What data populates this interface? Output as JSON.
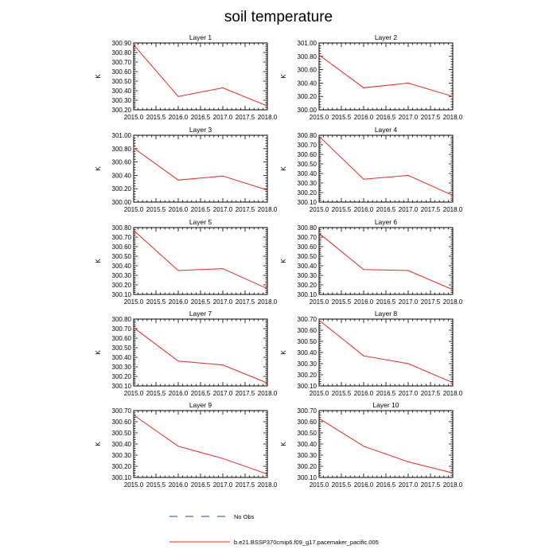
{
  "title": "soil temperature",
  "legend": [
    {
      "label": "No Obs",
      "color": "#2b3b8f",
      "style": "dashed"
    },
    {
      "label": "b.e21.BSSP370cmip6.f09_g17.pacemaker_pacific.005",
      "color": "#e8281e",
      "style": "solid"
    }
  ],
  "series_color": "#e8281e",
  "chart_data": [
    {
      "type": "line",
      "title": "Layer 1",
      "ylabel": "K",
      "x": [
        2015.0,
        2016.0,
        2017.0,
        2018.0
      ],
      "values": [
        300.88,
        300.34,
        300.43,
        300.24
      ],
      "xlim": [
        2015.0,
        2018.0
      ],
      "ylim": [
        300.2,
        300.9
      ],
      "xticks": [
        "2015.0",
        "2015.5",
        "2016.0",
        "2016.5",
        "2017.0",
        "2017.5",
        "2018.0"
      ],
      "yticks": [
        "300.20",
        "300.30",
        "300.40",
        "300.50",
        "300.60",
        "300.70",
        "300.80",
        "300.90"
      ]
    },
    {
      "type": "line",
      "title": "Layer 2",
      "ylabel": "K",
      "x": [
        2015.0,
        2016.0,
        2017.0,
        2018.0
      ],
      "values": [
        300.82,
        300.33,
        300.4,
        300.2
      ],
      "xlim": [
        2015.0,
        2018.0
      ],
      "ylim": [
        300.0,
        301.0
      ],
      "xticks": [
        "2015.0",
        "2015.5",
        "2016.0",
        "2016.5",
        "2017.0",
        "2017.5",
        "2018.0"
      ],
      "yticks": [
        "300.00",
        "300.20",
        "300.40",
        "300.60",
        "300.80",
        "301.00"
      ]
    },
    {
      "type": "line",
      "title": "Layer 3",
      "ylabel": "K",
      "x": [
        2015.0,
        2016.0,
        2017.0,
        2018.0
      ],
      "values": [
        300.81,
        300.33,
        300.39,
        300.18
      ],
      "xlim": [
        2015.0,
        2018.0
      ],
      "ylim": [
        300.0,
        301.0
      ],
      "xticks": [
        "2015.0",
        "2015.5",
        "2016.0",
        "2016.5",
        "2017.0",
        "2017.5",
        "2018.0"
      ],
      "yticks": [
        "300.00",
        "300.20",
        "300.40",
        "300.60",
        "300.80",
        "301.00"
      ]
    },
    {
      "type": "line",
      "title": "Layer 4",
      "ylabel": "K",
      "x": [
        2015.0,
        2016.0,
        2017.0,
        2018.0
      ],
      "values": [
        300.79,
        300.34,
        300.38,
        300.17
      ],
      "xlim": [
        2015.0,
        2018.0
      ],
      "ylim": [
        300.1,
        300.8
      ],
      "xticks": [
        "2015.0",
        "2015.5",
        "2016.0",
        "2016.5",
        "2017.0",
        "2017.5",
        "2018.0"
      ],
      "yticks": [
        "300.10",
        "300.20",
        "300.30",
        "300.40",
        "300.50",
        "300.60",
        "300.70",
        "300.80"
      ]
    },
    {
      "type": "line",
      "title": "Layer 5",
      "ylabel": "K",
      "x": [
        2015.0,
        2016.0,
        2017.0,
        2018.0
      ],
      "values": [
        300.77,
        300.35,
        300.37,
        300.16
      ],
      "xlim": [
        2015.0,
        2018.0
      ],
      "ylim": [
        300.1,
        300.8
      ],
      "xticks": [
        "2015.0",
        "2015.5",
        "2016.0",
        "2016.5",
        "2017.0",
        "2017.5",
        "2018.0"
      ],
      "yticks": [
        "300.10",
        "300.20",
        "300.30",
        "300.40",
        "300.50",
        "300.60",
        "300.70",
        "300.80"
      ]
    },
    {
      "type": "line",
      "title": "Layer 6",
      "ylabel": "K",
      "x": [
        2015.0,
        2016.0,
        2017.0,
        2018.0
      ],
      "values": [
        300.74,
        300.36,
        300.35,
        300.15
      ],
      "xlim": [
        2015.0,
        2018.0
      ],
      "ylim": [
        300.1,
        300.8
      ],
      "xticks": [
        "2015.0",
        "2015.5",
        "2016.0",
        "2016.5",
        "2017.0",
        "2017.5",
        "2018.0"
      ],
      "yticks": [
        "300.10",
        "300.20",
        "300.30",
        "300.40",
        "300.50",
        "300.60",
        "300.70",
        "300.80"
      ]
    },
    {
      "type": "line",
      "title": "Layer 7",
      "ylabel": "K",
      "x": [
        2015.0,
        2016.0,
        2017.0,
        2018.0
      ],
      "values": [
        300.71,
        300.36,
        300.32,
        300.13
      ],
      "xlim": [
        2015.0,
        2018.0
      ],
      "ylim": [
        300.1,
        300.8
      ],
      "xticks": [
        "2015.0",
        "2015.5",
        "2016.0",
        "2016.5",
        "2017.0",
        "2017.5",
        "2018.0"
      ],
      "yticks": [
        "300.10",
        "300.20",
        "300.30",
        "300.40",
        "300.50",
        "300.60",
        "300.70",
        "300.80"
      ]
    },
    {
      "type": "line",
      "title": "Layer 8",
      "ylabel": "K",
      "x": [
        2015.0,
        2016.0,
        2017.0,
        2018.0
      ],
      "values": [
        300.69,
        300.37,
        300.3,
        300.13
      ],
      "xlim": [
        2015.0,
        2018.0
      ],
      "ylim": [
        300.1,
        300.7
      ],
      "xticks": [
        "2015.0",
        "2015.5",
        "2016.0",
        "2016.5",
        "2017.0",
        "2017.5",
        "2018.0"
      ],
      "yticks": [
        "300.10",
        "300.20",
        "300.30",
        "300.40",
        "300.50",
        "300.60",
        "300.70"
      ]
    },
    {
      "type": "line",
      "title": "Layer 9",
      "ylabel": "K",
      "x": [
        2015.0,
        2016.0,
        2017.0,
        2018.0
      ],
      "values": [
        300.66,
        300.38,
        300.27,
        300.13
      ],
      "xlim": [
        2015.0,
        2018.0
      ],
      "ylim": [
        300.1,
        300.7
      ],
      "xticks": [
        "2015.0",
        "2015.5",
        "2016.0",
        "2016.5",
        "2017.0",
        "2017.5",
        "2018.0"
      ],
      "yticks": [
        "300.10",
        "300.20",
        "300.30",
        "300.40",
        "300.50",
        "300.60",
        "300.70"
      ]
    },
    {
      "type": "line",
      "title": "Layer 10",
      "ylabel": "K",
      "x": [
        2015.0,
        2016.0,
        2017.0,
        2018.0
      ],
      "values": [
        300.63,
        300.38,
        300.24,
        300.14
      ],
      "xlim": [
        2015.0,
        2018.0
      ],
      "ylim": [
        300.1,
        300.7
      ],
      "xticks": [
        "2015.0",
        "2015.5",
        "2016.0",
        "2016.5",
        "2017.0",
        "2017.5",
        "2018.0"
      ],
      "yticks": [
        "300.10",
        "300.20",
        "300.30",
        "300.40",
        "300.50",
        "300.60",
        "300.70"
      ]
    }
  ]
}
